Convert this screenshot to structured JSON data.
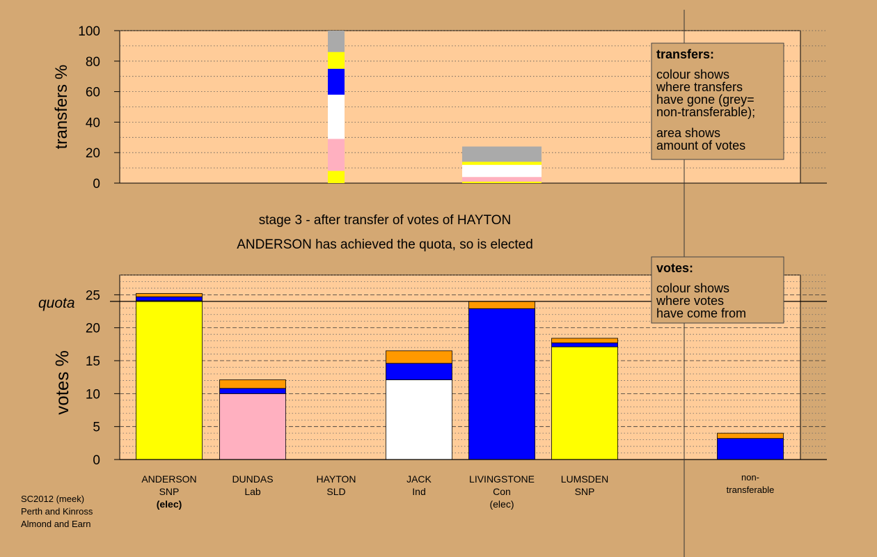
{
  "chart_data": [
    {
      "type": "bar",
      "subtype": "stacked",
      "ylabel": "transfers %",
      "ylim": [
        0,
        100
      ],
      "yticks": [
        0,
        20,
        40,
        60,
        80,
        100
      ],
      "grid": "dotted every 10",
      "legend": {
        "title": "transfers:",
        "lines": [
          "colour shows",
          "where transfers",
          "have gone (grey=",
          "non-transferable);"
        ],
        "lines2": [
          "area shows",
          "amount of votes"
        ],
        "placement": "top-right"
      },
      "columns": [
        {
          "position": "HAYTON",
          "segments": [
            {
              "value": 8,
              "color": "#ffff00"
            },
            {
              "value": 21,
              "color": "#ffb0c0"
            },
            {
              "value": 29,
              "color": "#ffffff"
            },
            {
              "value": 17,
              "color": "#0000ff"
            },
            {
              "value": 11,
              "color": "#ffff00"
            },
            {
              "value": 14,
              "color": "#aaaaaa"
            }
          ]
        },
        {
          "position": "LIVINGSTONE",
          "segments": [
            {
              "value": 1,
              "color": "#ffff00"
            },
            {
              "value": 3,
              "color": "#ffb0c0"
            },
            {
              "value": 8,
              "color": "#ffffff"
            },
            {
              "value": 2,
              "color": "#ffff00"
            },
            {
              "value": 10,
              "color": "#aaaaaa"
            }
          ]
        }
      ]
    },
    {
      "type": "bar",
      "subtype": "stacked",
      "ylabel": "votes %",
      "ylim": [
        0,
        28
      ],
      "yticks": [
        0,
        5,
        10,
        15,
        20,
        25
      ],
      "grid": "dashed every 5, dotted every 1",
      "quota": {
        "value": 24,
        "label": "quota"
      },
      "legend": {
        "title": "votes:",
        "lines": [
          "colour shows",
          "where votes",
          "have come from"
        ],
        "placement": "top-right"
      },
      "categories": [
        {
          "name": "ANDERSON",
          "party": "SNP",
          "status": "(elec)",
          "bold_status": true
        },
        {
          "name": "DUNDAS",
          "party": "Lab",
          "status": ""
        },
        {
          "name": "HAYTON",
          "party": "SLD",
          "status": ""
        },
        {
          "name": "JACK",
          "party": "Ind",
          "status": ""
        },
        {
          "name": "LIVINGSTONE",
          "party": "Con",
          "status": "(elec)"
        },
        {
          "name": "LUMSDEN",
          "party": "SNP",
          "status": ""
        }
      ],
      "nontransferable_label": [
        "non-",
        "transferable"
      ],
      "stacks": [
        [
          {
            "value": 24.1,
            "color": "#ffff00"
          },
          {
            "value": 0.6,
            "color": "#0000ff"
          },
          {
            "value": 0.5,
            "color": "#ff9900"
          }
        ],
        [
          {
            "value": 10.0,
            "color": "#ffb0c0"
          },
          {
            "value": 0.8,
            "color": "#0000ff"
          },
          {
            "value": 1.3,
            "color": "#ff9900"
          }
        ],
        [],
        [
          {
            "value": 12.1,
            "color": "#ffffff"
          },
          {
            "value": 2.5,
            "color": "#0000ff"
          },
          {
            "value": 1.9,
            "color": "#ff9900"
          }
        ],
        [
          {
            "value": 22.9,
            "color": "#0000ff"
          },
          {
            "value": 1.1,
            "color": "#ff9900"
          }
        ],
        [
          {
            "value": 17.1,
            "color": "#ffff00"
          },
          {
            "value": 0.6,
            "color": "#0000ff"
          },
          {
            "value": 0.7,
            "color": "#ff9900"
          }
        ]
      ],
      "nontransferable_stack": [
        {
          "value": 3.2,
          "color": "#0000ff"
        },
        {
          "value": 0.8,
          "color": "#ff9900"
        }
      ]
    }
  ],
  "stage_text": "stage 3 - after transfer of votes of HAYTON",
  "status_text": "ANDERSON has achieved the quota, so is elected",
  "footer": [
    "SC2012 (meek)",
    "Perth and Kinross",
    "Almond and Earn"
  ]
}
